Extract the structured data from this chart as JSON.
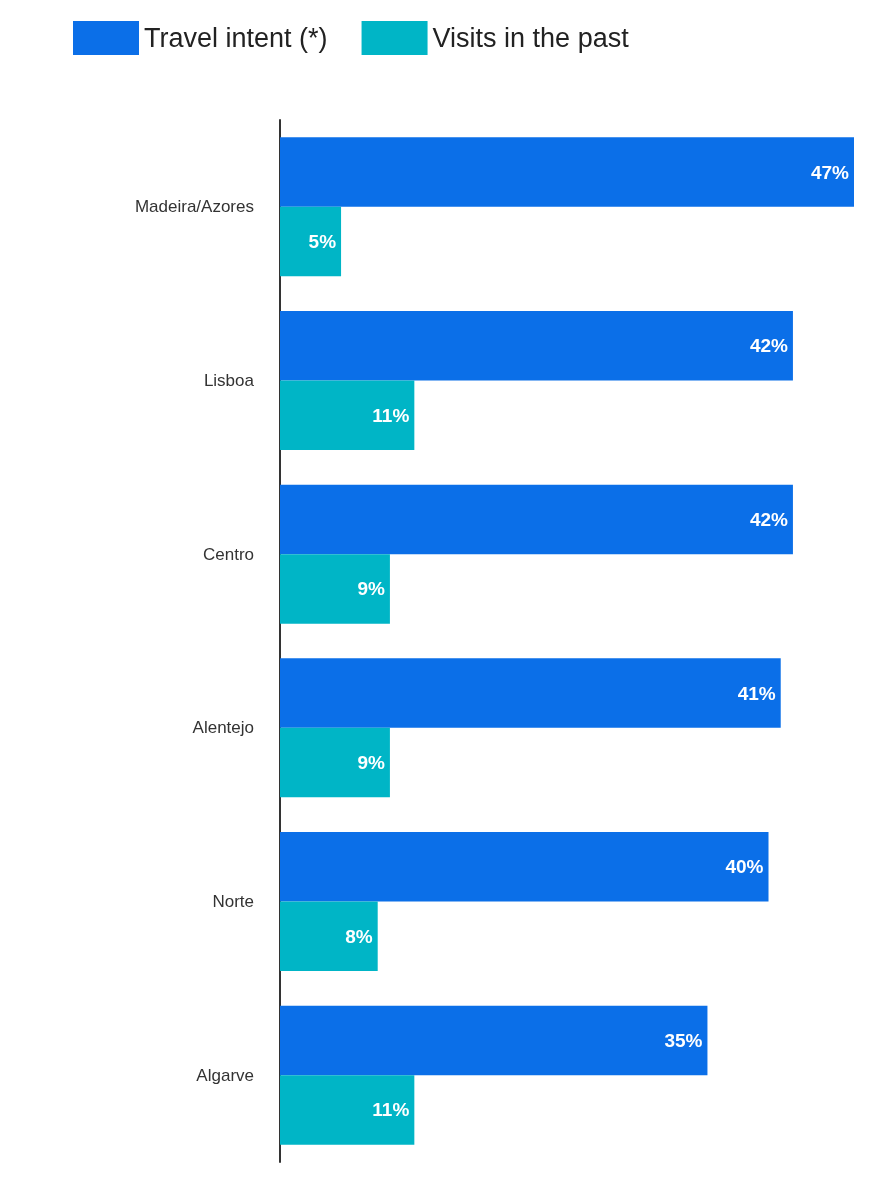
{
  "chart_data": {
    "type": "bar",
    "orientation": "horizontal",
    "categories": [
      "Madeira/Azores",
      "Lisboa",
      "Centro",
      "Alentejo",
      "Norte",
      "Algarve"
    ],
    "series": [
      {
        "name": "Travel intent (*)",
        "color": "#0b6fe8",
        "values": [
          47,
          42,
          42,
          41,
          40,
          35
        ],
        "value_labels": [
          "47%",
          "42%",
          "42%",
          "41%",
          "40%",
          "35%"
        ]
      },
      {
        "name": "Visits in the past",
        "color": "#00b5c6",
        "values": [
          5,
          11,
          9,
          9,
          8,
          11
        ],
        "value_labels": [
          "5%",
          "11%",
          "9%",
          "9%",
          "8%",
          "11%"
        ]
      }
    ],
    "legend": "top left",
    "grid": false
  }
}
